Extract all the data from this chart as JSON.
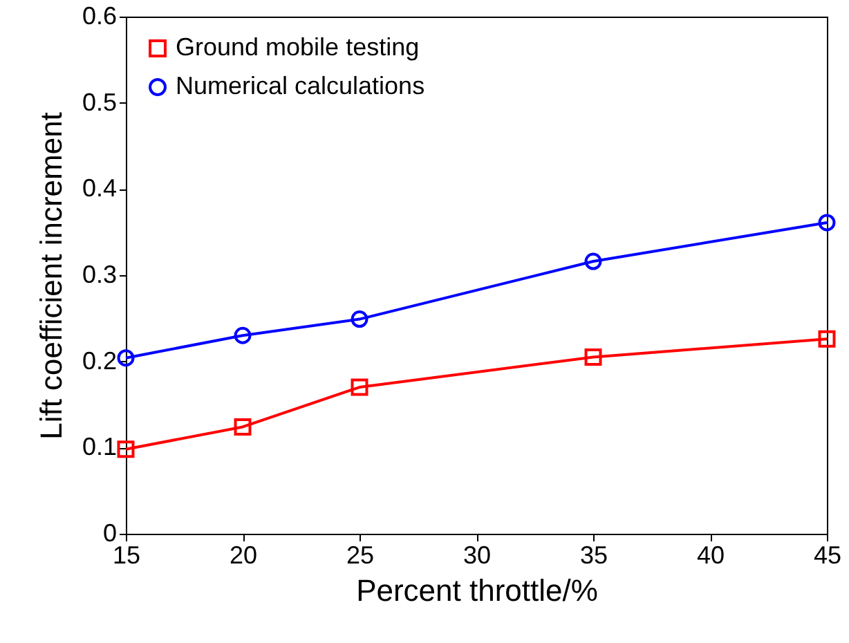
{
  "chart_data": {
    "type": "line",
    "xlabel": "Percent throttle/%",
    "ylabel": "Lift coefficient increment",
    "x": [
      15,
      20,
      25,
      35,
      45
    ],
    "series": [
      {
        "name": "Ground mobile testing",
        "color": "#ff0000",
        "marker": "square",
        "values": [
          0.098,
          0.124,
          0.17,
          0.205,
          0.226
        ]
      },
      {
        "name": "Numerical calculations",
        "color": "#0000ff",
        "marker": "circle",
        "values": [
          0.204,
          0.23,
          0.249,
          0.316,
          0.361
        ]
      }
    ],
    "xlim": [
      15,
      45
    ],
    "xticks": [
      15,
      20,
      25,
      30,
      35,
      40,
      45
    ],
    "ylim": [
      0,
      0.6
    ],
    "yticks": [
      0,
      0.1,
      0.2,
      0.3,
      0.4,
      0.5,
      0.6
    ],
    "grid": false,
    "legend": "top left",
    "line_style": "solid"
  }
}
